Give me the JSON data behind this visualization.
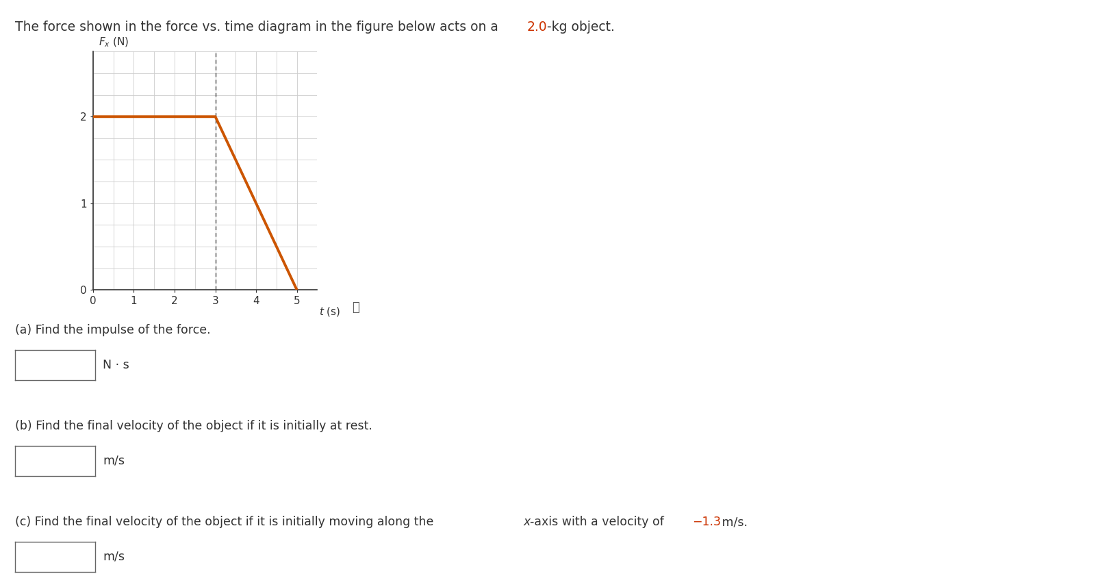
{
  "bg_color": "#ffffff",
  "graph_line_color": "#cc5500",
  "graph_line_points_x": [
    0,
    3,
    5
  ],
  "graph_line_points_y": [
    2,
    2,
    0
  ],
  "dashed_line_x": 3,
  "dashed_line_color": "#444444",
  "ylabel_main": "F",
  "ylabel_sub": "x",
  "ylabel_unit": " (N)",
  "xlabel": "t (s)",
  "yticks": [
    0,
    1,
    2
  ],
  "xticks": [
    0,
    1,
    2,
    3,
    4,
    5
  ],
  "xlim": [
    0,
    5.5
  ],
  "ylim": [
    0,
    2.75
  ],
  "grid_color": "#cccccc",
  "axis_color": "#333333",
  "highlight_color": "#cc3300",
  "text_color": "#333333",
  "question_a": "(a) Find the impulse of the force.",
  "question_b": "(b) Find the final velocity of the object if it is initially at rest.",
  "question_c_pre": "(c) Find the final velocity of the object if it is initially moving along the ",
  "question_c_x": "x",
  "question_c_post": "-axis with a velocity of ",
  "question_c_val": "−1.3",
  "question_c_end": " m/s.",
  "unit_a": "N · s",
  "unit_b": "m/s",
  "unit_c": "m/s"
}
